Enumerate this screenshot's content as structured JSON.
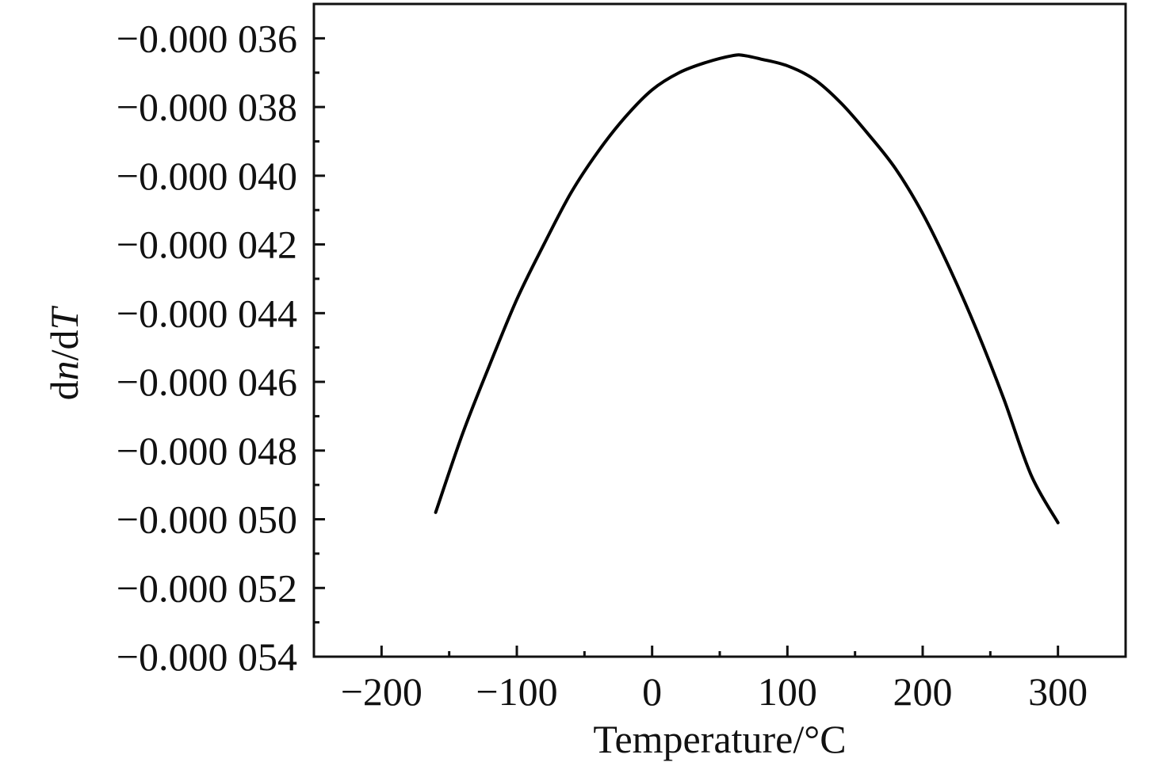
{
  "chart_data": {
    "type": "line",
    "title": "",
    "xlabel": "Temperature/°C",
    "ylabel": {
      "parts": [
        {
          "text": "d",
          "italic": false
        },
        {
          "text": "n",
          "italic": true
        },
        {
          "text": "/d",
          "italic": false
        },
        {
          "text": "T",
          "italic": true
        }
      ]
    },
    "xlim": [
      -250,
      350
    ],
    "ylim": [
      -5.4e-05,
      -3.5e-05
    ],
    "x_ticks": [
      {
        "value": -200,
        "label": "−200"
      },
      {
        "value": -100,
        "label": "−100"
      },
      {
        "value": 0,
        "label": "0"
      },
      {
        "value": 100,
        "label": "100"
      },
      {
        "value": 200,
        "label": "200"
      },
      {
        "value": 300,
        "label": "300"
      }
    ],
    "x_minor_ticks": [
      -150,
      -50,
      50,
      150,
      250
    ],
    "y_ticks": [
      {
        "value": -3.6e-05,
        "label": "−0.000 036"
      },
      {
        "value": -3.8e-05,
        "label": "−0.000 038"
      },
      {
        "value": -4e-05,
        "label": "−0.000 040"
      },
      {
        "value": -4.2e-05,
        "label": "−0.000 042"
      },
      {
        "value": -4.4e-05,
        "label": "−0.000 044"
      },
      {
        "value": -4.6e-05,
        "label": "−0.000 046"
      },
      {
        "value": -4.8e-05,
        "label": "−0.000 048"
      },
      {
        "value": -5e-05,
        "label": "−0.000 050"
      },
      {
        "value": -5.2e-05,
        "label": "−0.000 052"
      },
      {
        "value": -5.4e-05,
        "label": "−0.000 054"
      }
    ],
    "y_minor_ticks": [
      -3.7e-05,
      -3.9e-05,
      -4.1e-05,
      -4.3e-05,
      -4.5e-05,
      -4.7e-05,
      -4.9e-05,
      -5.1e-05,
      -5.3e-05
    ],
    "grid": false,
    "series": [
      {
        "color": "#000000",
        "x": [
          -160,
          -140,
          -120,
          -100,
          -80,
          -60,
          -40,
          -20,
          0,
          20,
          40,
          60,
          68,
          80,
          100,
          120,
          140,
          160,
          180,
          200,
          220,
          240,
          260,
          280,
          300
        ],
        "y": [
          -4.98e-05,
          -4.75e-05,
          -4.55e-05,
          -4.36e-05,
          -4.2e-05,
          -4.05e-05,
          -3.93e-05,
          -3.83e-05,
          -3.75e-05,
          -3.7e-05,
          -3.67e-05,
          -3.65e-05,
          -3.65e-05,
          -3.66e-05,
          -3.68e-05,
          -3.72e-05,
          -3.79e-05,
          -3.88e-05,
          -3.98e-05,
          -4.11e-05,
          -4.27e-05,
          -4.45e-05,
          -4.65e-05,
          -4.87e-05,
          -5.01e-05
        ]
      }
    ]
  }
}
